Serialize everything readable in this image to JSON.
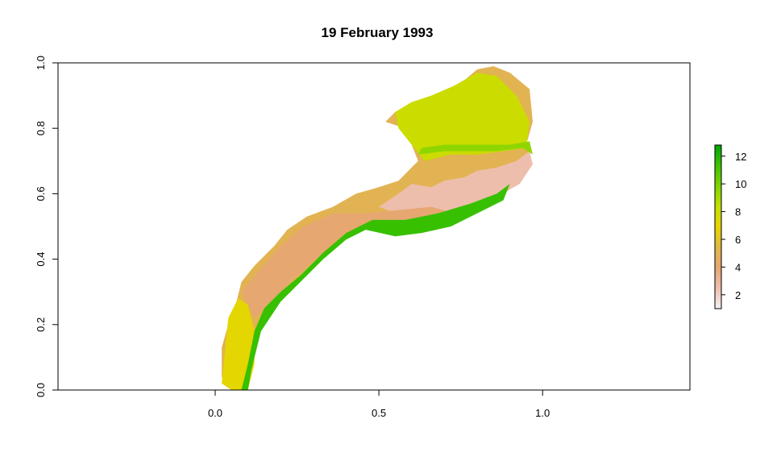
{
  "chart_data": {
    "type": "heatmap",
    "title": "19 February 1993",
    "xlabel": "",
    "ylabel": "",
    "xlim": [
      -0.48,
      1.45
    ],
    "ylim": [
      0.0,
      1.0
    ],
    "x_ticks": [
      0.0,
      0.5,
      1.0
    ],
    "x_tick_labels": [
      "0.0",
      "0.5",
      "1.0"
    ],
    "y_ticks": [
      0.0,
      0.2,
      0.4,
      0.6,
      0.8,
      1.0
    ],
    "y_tick_labels": [
      "0.0",
      "0.2",
      "0.4",
      "0.6",
      "0.8",
      "1.0"
    ],
    "grid": false,
    "legend": {
      "placement": "right",
      "range": [
        1,
        12.8
      ],
      "ticks": [
        2,
        4,
        6,
        8,
        10,
        12
      ],
      "tick_labels": [
        "2",
        "4",
        "6",
        "8",
        "10",
        "12"
      ],
      "colors": [
        "#F2F2F2",
        "#EEBEAD",
        "#E6A673",
        "#E0B844",
        "#E6D500",
        "#C2DF00",
        "#7FD300",
        "#3EC300",
        "#00A600"
      ]
    },
    "regions": [
      {
        "value": 5,
        "polygon": [
          [
            0.02,
            0.13
          ],
          [
            0.04,
            0.2
          ],
          [
            0.06,
            0.25
          ],
          [
            0.08,
            0.33
          ],
          [
            0.12,
            0.38
          ],
          [
            0.18,
            0.44
          ],
          [
            0.22,
            0.49
          ],
          [
            0.28,
            0.53
          ],
          [
            0.36,
            0.56
          ],
          [
            0.43,
            0.6
          ],
          [
            0.5,
            0.62
          ],
          [
            0.56,
            0.64
          ],
          [
            0.62,
            0.7
          ],
          [
            0.58,
            0.8
          ],
          [
            0.52,
            0.82
          ],
          [
            0.55,
            0.85
          ],
          [
            0.6,
            0.87
          ],
          [
            0.66,
            0.89
          ],
          [
            0.73,
            0.92
          ],
          [
            0.8,
            0.98
          ],
          [
            0.85,
            0.99
          ],
          [
            0.9,
            0.97
          ],
          [
            0.96,
            0.92
          ],
          [
            0.97,
            0.82
          ],
          [
            0.95,
            0.75
          ],
          [
            0.97,
            0.69
          ],
          [
            0.92,
            0.63
          ],
          [
            0.85,
            0.58
          ],
          [
            0.78,
            0.54
          ],
          [
            0.72,
            0.5
          ],
          [
            0.63,
            0.48
          ],
          [
            0.55,
            0.47
          ],
          [
            0.46,
            0.5
          ],
          [
            0.4,
            0.48
          ],
          [
            0.34,
            0.43
          ],
          [
            0.28,
            0.37
          ],
          [
            0.22,
            0.31
          ],
          [
            0.16,
            0.25
          ],
          [
            0.12,
            0.15
          ],
          [
            0.1,
            0.05
          ],
          [
            0.1,
            0.0
          ],
          [
            0.05,
            0.0
          ],
          [
            0.02,
            0.04
          ]
        ]
      },
      {
        "value": 2.5,
        "polygon": [
          [
            0.5,
            0.56
          ],
          [
            0.56,
            0.6
          ],
          [
            0.6,
            0.63
          ],
          [
            0.66,
            0.62
          ],
          [
            0.7,
            0.64
          ],
          [
            0.76,
            0.65
          ],
          [
            0.8,
            0.67
          ],
          [
            0.86,
            0.68
          ],
          [
            0.92,
            0.7
          ],
          [
            0.96,
            0.73
          ],
          [
            0.97,
            0.69
          ],
          [
            0.93,
            0.63
          ],
          [
            0.86,
            0.59
          ],
          [
            0.8,
            0.57
          ],
          [
            0.73,
            0.53
          ],
          [
            0.66,
            0.51
          ],
          [
            0.58,
            0.53
          ]
        ]
      },
      {
        "value": 4,
        "polygon": [
          [
            0.08,
            0.3
          ],
          [
            0.13,
            0.36
          ],
          [
            0.2,
            0.44
          ],
          [
            0.27,
            0.5
          ],
          [
            0.36,
            0.54
          ],
          [
            0.46,
            0.54
          ],
          [
            0.56,
            0.55
          ],
          [
            0.66,
            0.56
          ],
          [
            0.73,
            0.54
          ],
          [
            0.62,
            0.5
          ],
          [
            0.5,
            0.5
          ],
          [
            0.4,
            0.48
          ],
          [
            0.32,
            0.41
          ],
          [
            0.24,
            0.34
          ],
          [
            0.18,
            0.28
          ],
          [
            0.12,
            0.22
          ]
        ]
      },
      {
        "value": 8,
        "polygon": [
          [
            0.55,
            0.85
          ],
          [
            0.6,
            0.88
          ],
          [
            0.66,
            0.9
          ],
          [
            0.73,
            0.93
          ],
          [
            0.8,
            0.97
          ],
          [
            0.86,
            0.96
          ],
          [
            0.92,
            0.9
          ],
          [
            0.96,
            0.82
          ],
          [
            0.95,
            0.74
          ],
          [
            0.88,
            0.73
          ],
          [
            0.8,
            0.72
          ],
          [
            0.72,
            0.72
          ],
          [
            0.64,
            0.7
          ],
          [
            0.6,
            0.75
          ],
          [
            0.56,
            0.8
          ]
        ]
      },
      {
        "value": 7,
        "polygon": [
          [
            0.02,
            0.02
          ],
          [
            0.03,
            0.12
          ],
          [
            0.04,
            0.22
          ],
          [
            0.07,
            0.28
          ],
          [
            0.1,
            0.26
          ],
          [
            0.12,
            0.18
          ],
          [
            0.12,
            0.08
          ],
          [
            0.1,
            0.0
          ],
          [
            0.05,
            0.0
          ]
        ]
      },
      {
        "value": 11.5,
        "polygon": [
          [
            0.08,
            0.0
          ],
          [
            0.1,
            0.08
          ],
          [
            0.12,
            0.18
          ],
          [
            0.15,
            0.25
          ],
          [
            0.2,
            0.3
          ],
          [
            0.26,
            0.35
          ],
          [
            0.33,
            0.42
          ],
          [
            0.4,
            0.48
          ],
          [
            0.48,
            0.52
          ],
          [
            0.58,
            0.52
          ],
          [
            0.68,
            0.54
          ],
          [
            0.78,
            0.57
          ],
          [
            0.86,
            0.6
          ],
          [
            0.9,
            0.63
          ],
          [
            0.88,
            0.58
          ],
          [
            0.8,
            0.54
          ],
          [
            0.72,
            0.5
          ],
          [
            0.63,
            0.48
          ],
          [
            0.55,
            0.47
          ],
          [
            0.46,
            0.49
          ],
          [
            0.4,
            0.46
          ],
          [
            0.33,
            0.4
          ],
          [
            0.26,
            0.33
          ],
          [
            0.2,
            0.27
          ],
          [
            0.14,
            0.18
          ],
          [
            0.11,
            0.06
          ],
          [
            0.1,
            0.0
          ]
        ]
      },
      {
        "value": 9.5,
        "polygon": [
          [
            0.62,
            0.72
          ],
          [
            0.7,
            0.73
          ],
          [
            0.78,
            0.73
          ],
          [
            0.86,
            0.73
          ],
          [
            0.94,
            0.74
          ],
          [
            0.97,
            0.72
          ],
          [
            0.96,
            0.76
          ],
          [
            0.9,
            0.75
          ],
          [
            0.8,
            0.75
          ],
          [
            0.7,
            0.75
          ],
          [
            0.63,
            0.74
          ]
        ]
      }
    ]
  }
}
